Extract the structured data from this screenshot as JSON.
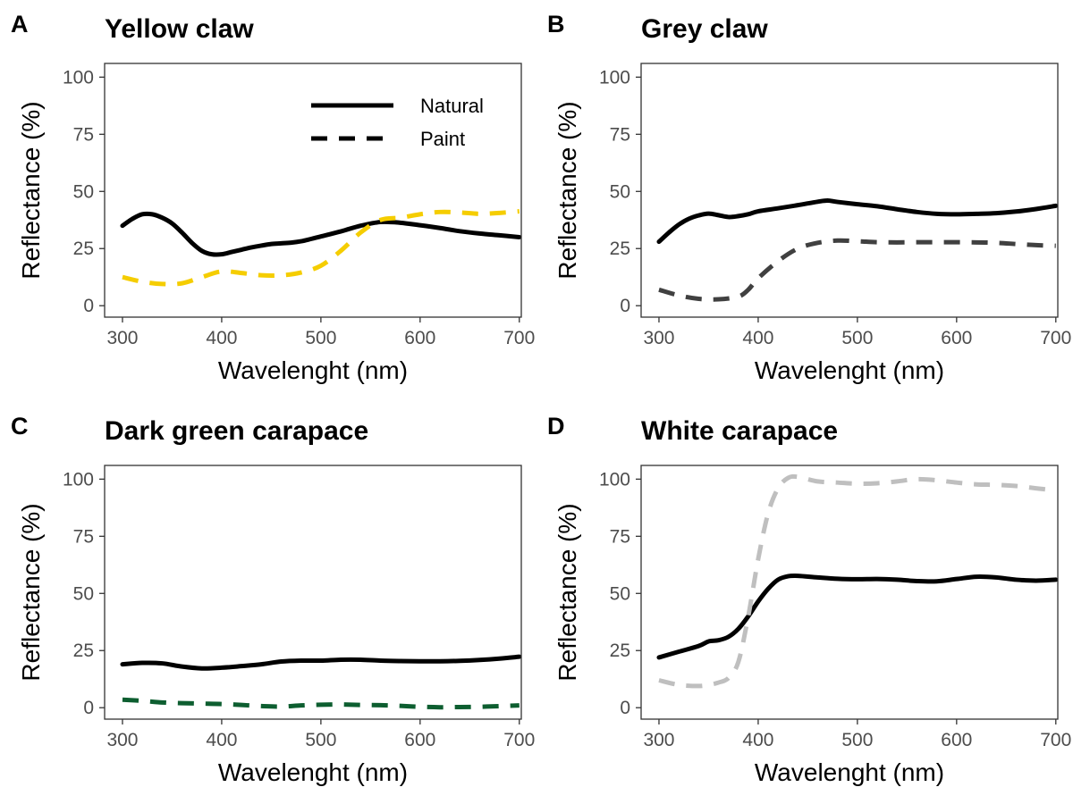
{
  "chart_data": [
    {
      "type": "line",
      "panel_label": "A",
      "title": "Yellow claw",
      "xlabel": "Wavelenght (nm)",
      "ylabel": "Reflectance (%)",
      "xlim": [
        282,
        702
      ],
      "ylim": [
        -5,
        106
      ],
      "x_ticks": [
        300,
        400,
        500,
        600,
        700
      ],
      "y_ticks": [
        0,
        25,
        50,
        75,
        100
      ],
      "grid": false,
      "legend": {
        "position": "top-right",
        "entries": [
          {
            "label": "Natural",
            "style": "solid"
          },
          {
            "label": "Paint",
            "style": "dashed"
          }
        ]
      },
      "series": [
        {
          "style": "solid",
          "color": "#000000",
          "x": [
            300,
            310,
            320,
            330,
            340,
            350,
            360,
            370,
            380,
            390,
            400,
            410,
            420,
            430,
            440,
            450,
            460,
            470,
            480,
            490,
            500,
            520,
            540,
            560,
            580,
            600,
            620,
            640,
            660,
            680,
            700
          ],
          "y": [
            35,
            38,
            40,
            40,
            38.5,
            36,
            32,
            27.5,
            24,
            22.5,
            22.5,
            23.5,
            24.5,
            25.5,
            26.3,
            27,
            27.3,
            27.6,
            28.2,
            29.2,
            30.3,
            32.5,
            35,
            36.6,
            36.3,
            35.2,
            34,
            32.6,
            31.6,
            30.8,
            30
          ]
        },
        {
          "style": "dashed",
          "color": "#f5cd00",
          "x": [
            300,
            320,
            340,
            360,
            380,
            400,
            420,
            440,
            460,
            480,
            500,
            520,
            540,
            560,
            580,
            600,
            620,
            640,
            660,
            680,
            700
          ],
          "y": [
            12.5,
            10.5,
            9.5,
            9.8,
            12.5,
            15,
            14.3,
            13.3,
            13.3,
            14.5,
            17.5,
            24,
            32,
            37.5,
            38.5,
            40,
            41,
            40.8,
            40.2,
            40.6,
            41.3
          ]
        }
      ]
    },
    {
      "type": "line",
      "panel_label": "B",
      "title": "Grey claw",
      "xlabel": "Wavelenght (nm)",
      "ylabel": "Reflectance (%)",
      "xlim": [
        282,
        702
      ],
      "ylim": [
        -5,
        106
      ],
      "x_ticks": [
        300,
        400,
        500,
        600,
        700
      ],
      "y_ticks": [
        0,
        25,
        50,
        75,
        100
      ],
      "grid": false,
      "series": [
        {
          "style": "solid",
          "color": "#000000",
          "x": [
            300,
            310,
            320,
            330,
            340,
            350,
            360,
            370,
            380,
            390,
            400,
            420,
            440,
            460,
            470,
            480,
            500,
            520,
            540,
            560,
            580,
            600,
            620,
            640,
            660,
            680,
            700
          ],
          "y": [
            28,
            32,
            35.5,
            38,
            39.5,
            40.3,
            39.6,
            38.8,
            39.2,
            40,
            41.3,
            42.6,
            44,
            45.5,
            46,
            45.4,
            44.4,
            43.5,
            42.2,
            41,
            40.2,
            40,
            40.2,
            40.5,
            41.2,
            42.3,
            43.7
          ]
        },
        {
          "style": "dashed",
          "color": "#404040",
          "x": [
            300,
            320,
            340,
            360,
            380,
            390,
            400,
            420,
            440,
            460,
            480,
            500,
            520,
            540,
            560,
            580,
            600,
            620,
            640,
            660,
            680,
            700
          ],
          "y": [
            7,
            4.5,
            3,
            2.8,
            4,
            7,
            12,
            19.5,
            25,
            27.5,
            28.5,
            28.2,
            27.8,
            27.7,
            27.8,
            27.8,
            27.8,
            27.7,
            27.5,
            27,
            26.5,
            26.2
          ]
        }
      ]
    },
    {
      "type": "line",
      "panel_label": "C",
      "title": "Dark green carapace",
      "xlabel": "Wavelenght (nm)",
      "ylabel": "Reflectance (%)",
      "xlim": [
        282,
        702
      ],
      "ylim": [
        -5,
        106
      ],
      "x_ticks": [
        300,
        400,
        500,
        600,
        700
      ],
      "y_ticks": [
        0,
        25,
        50,
        75,
        100
      ],
      "grid": false,
      "series": [
        {
          "style": "solid",
          "color": "#000000",
          "x": [
            300,
            320,
            340,
            360,
            380,
            400,
            420,
            440,
            460,
            480,
            500,
            520,
            540,
            560,
            580,
            600,
            620,
            640,
            660,
            680,
            700
          ],
          "y": [
            19,
            19.6,
            19.4,
            18,
            17.2,
            17.5,
            18.2,
            19,
            20.2,
            20.6,
            20.6,
            21,
            21,
            20.6,
            20.4,
            20.3,
            20.3,
            20.5,
            20.9,
            21.5,
            22.3
          ]
        },
        {
          "style": "dashed",
          "color": "#0d5e30",
          "x": [
            300,
            320,
            340,
            360,
            380,
            400,
            420,
            440,
            460,
            480,
            500,
            520,
            540,
            560,
            580,
            600,
            620,
            640,
            660,
            680,
            700
          ],
          "y": [
            3.5,
            3,
            2.3,
            2,
            1.8,
            1.6,
            1.2,
            0.7,
            0.5,
            1,
            1.3,
            1.4,
            1.2,
            1.1,
            0.8,
            0.4,
            0.2,
            0.3,
            0.4,
            0.7,
            1
          ]
        }
      ]
    },
    {
      "type": "line",
      "panel_label": "D",
      "title": "White carapace",
      "xlabel": "Wavelenght (nm)",
      "ylabel": "Reflectance (%)",
      "xlim": [
        282,
        702
      ],
      "ylim": [
        -5,
        106
      ],
      "x_ticks": [
        300,
        400,
        500,
        600,
        700
      ],
      "y_ticks": [
        0,
        25,
        50,
        75,
        100
      ],
      "grid": false,
      "series": [
        {
          "style": "solid",
          "color": "#000000",
          "x": [
            300,
            320,
            340,
            350,
            360,
            370,
            380,
            390,
            400,
            410,
            420,
            430,
            440,
            460,
            480,
            500,
            520,
            540,
            560,
            580,
            600,
            620,
            640,
            660,
            680,
            700
          ],
          "y": [
            22,
            24.5,
            27,
            29,
            29.5,
            31,
            34.5,
            40,
            46.5,
            52,
            56,
            57.5,
            57.7,
            57,
            56.4,
            56.2,
            56.3,
            56,
            55.4,
            55.3,
            56.3,
            57.3,
            57,
            56,
            55.6,
            56
          ]
        },
        {
          "style": "dashed",
          "color": "#bfbfbf",
          "x": [
            300,
            320,
            340,
            350,
            360,
            370,
            380,
            390,
            400,
            410,
            420,
            430,
            440,
            460,
            480,
            500,
            520,
            540,
            560,
            580,
            600,
            620,
            640,
            660,
            680,
            700
          ],
          "y": [
            12,
            10,
            9.5,
            10,
            11,
            13,
            20,
            40,
            65,
            85,
            96,
            100.5,
            101,
            99,
            98.5,
            98,
            98.2,
            99,
            100,
            99.5,
            98.5,
            97.7,
            97.5,
            97,
            96,
            95
          ]
        }
      ]
    }
  ]
}
